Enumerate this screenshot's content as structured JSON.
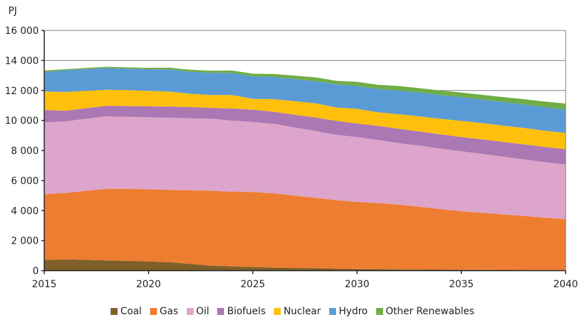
{
  "chart_data": {
    "type": "area",
    "stacked": true,
    "title": "",
    "ylabel": "PJ",
    "xlabel": "",
    "xlim": [
      2015,
      2040
    ],
    "ylim": [
      0,
      16000
    ],
    "x_ticks": [
      2015,
      2020,
      2025,
      2030,
      2035,
      2040
    ],
    "y_ticks": [
      0,
      2000,
      4000,
      6000,
      8000,
      10000,
      12000,
      14000,
      16000
    ],
    "y_tick_labels": [
      "0",
      "2 000",
      "4 000",
      "6 000",
      "8 000",
      "10 000",
      "12 000",
      "14 000",
      "16 000"
    ],
    "grid": "horizontal",
    "legend_position": "bottom",
    "x": [
      2015,
      2016,
      2017,
      2018,
      2019,
      2020,
      2021,
      2022,
      2023,
      2024,
      2025,
      2026,
      2027,
      2028,
      2029,
      2030,
      2031,
      2032,
      2033,
      2034,
      2035,
      2036,
      2037,
      2038,
      2039,
      2040
    ],
    "series": [
      {
        "name": "Coal",
        "color": "#7f5f28",
        "values": [
          700,
          750,
          720,
          680,
          650,
          610,
          560,
          450,
          330,
          280,
          250,
          200,
          180,
          160,
          130,
          100,
          90,
          80,
          73,
          67,
          60,
          54,
          48,
          42,
          36,
          30
        ]
      },
      {
        "name": "Gas",
        "color": "#ed7d31",
        "values": [
          4400,
          4430,
          4600,
          4770,
          4800,
          4810,
          4820,
          4900,
          4990,
          4980,
          4990,
          4950,
          4820,
          4690,
          4570,
          4480,
          4410,
          4320,
          4180,
          4030,
          3890,
          3800,
          3700,
          3600,
          3490,
          3400
        ]
      },
      {
        "name": "Oil",
        "color": "#dda5cb",
        "values": [
          4770,
          4770,
          4800,
          4830,
          4800,
          4800,
          4800,
          4800,
          4800,
          4740,
          4660,
          4630,
          4540,
          4450,
          4350,
          4320,
          4200,
          4100,
          4070,
          4030,
          4000,
          3920,
          3840,
          3770,
          3700,
          3630
        ]
      },
      {
        "name": "Biofuels",
        "color": "#ab78b4",
        "values": [
          830,
          700,
          700,
          700,
          710,
          730,
          750,
          750,
          730,
          800,
          820,
          800,
          850,
          900,
          930,
          900,
          950,
          950,
          950,
          950,
          950,
          970,
          990,
          1000,
          1020,
          1030
        ]
      },
      {
        "name": "Nuclear",
        "color": "#ffc00b",
        "values": [
          1240,
          1250,
          1160,
          1070,
          1070,
          1030,
          1000,
          880,
          850,
          900,
          730,
          840,
          900,
          950,
          890,
          980,
          900,
          970,
          1000,
          1040,
          1080,
          1080,
          1080,
          1090,
          1080,
          1080
        ]
      },
      {
        "name": "Hydro",
        "color": "#5b9bd5",
        "values": [
          1290,
          1450,
          1440,
          1450,
          1420,
          1440,
          1470,
          1470,
          1480,
          1470,
          1490,
          1480,
          1470,
          1470,
          1550,
          1520,
          1550,
          1580,
          1580,
          1580,
          1580,
          1580,
          1570,
          1570,
          1570,
          1560
        ]
      },
      {
        "name": "Other Renewables",
        "color": "#70ad47",
        "values": [
          100,
          70,
          80,
          80,
          90,
          90,
          120,
          130,
          140,
          160,
          180,
          200,
          230,
          260,
          230,
          280,
          280,
          300,
          300,
          300,
          300,
          310,
          330,
          350,
          370,
          400
        ]
      }
    ]
  }
}
